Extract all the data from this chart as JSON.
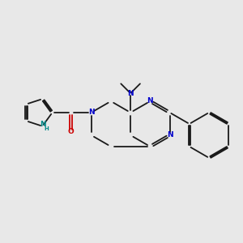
{
  "bg_color": "#e8e8e8",
  "bond_color": "#1a1a1a",
  "n_color": "#0000cc",
  "o_color": "#cc0000",
  "nh_color": "#008888",
  "lw": 1.3,
  "fs": 6.5,
  "dpi": 100,
  "xlim": [
    0,
    10
  ],
  "ylim": [
    2,
    9
  ]
}
